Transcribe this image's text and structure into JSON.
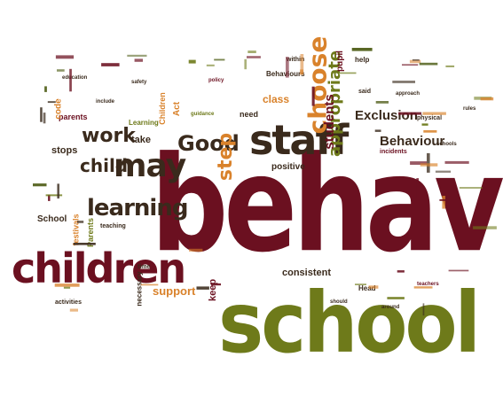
{
  "colors": {
    "maroon": "#6b1020",
    "olive": "#6e7a1a",
    "orange": "#d9822b",
    "dark_brown": "#3a2a1c",
    "dark_olive": "#4b5a12",
    "light_orange": "#e2a04a",
    "red": "#8f1b1b"
  },
  "words": {
    "behaviour": "behaviour",
    "school_big": "school",
    "staff": "staff",
    "children": "children",
    "learning": "learning",
    "may": "may",
    "good": "Good",
    "choose": "choose",
    "work": "work",
    "child": "child",
    "step": "step",
    "appropriate": "appropriate",
    "students": "students",
    "exclusion": "Exclusion",
    "behaviour_small": "Behaviour",
    "support": "support",
    "consistent": "consistent",
    "school_small": "School",
    "positive": "positive",
    "class": "class",
    "keep": "keep",
    "stops": "stops",
    "take": "take",
    "parents": "parents",
    "code": "code",
    "need": "need",
    "act": "Act",
    "behaviours": "Behaviours",
    "pupil": "pupil",
    "help": "help",
    "within": "within",
    "physical": "physical",
    "incidents": "incidents",
    "necessary": "necessary",
    "teaching": "teaching",
    "activities": "activities",
    "head": "Head",
    "said": "said",
    "approach": "approach",
    "education": "education",
    "safety": "safety",
    "policy": "policy",
    "include": "include",
    "guidance": "guidance",
    "schools": "schools",
    "festivals": "festivals",
    "parents_vertical": "Parents",
    "rules": "rules",
    "time": "time",
    "teachers": "teachers",
    "should": "should",
    "around": "around",
    "children_small": "Children",
    "learning_small": "Learning"
  }
}
